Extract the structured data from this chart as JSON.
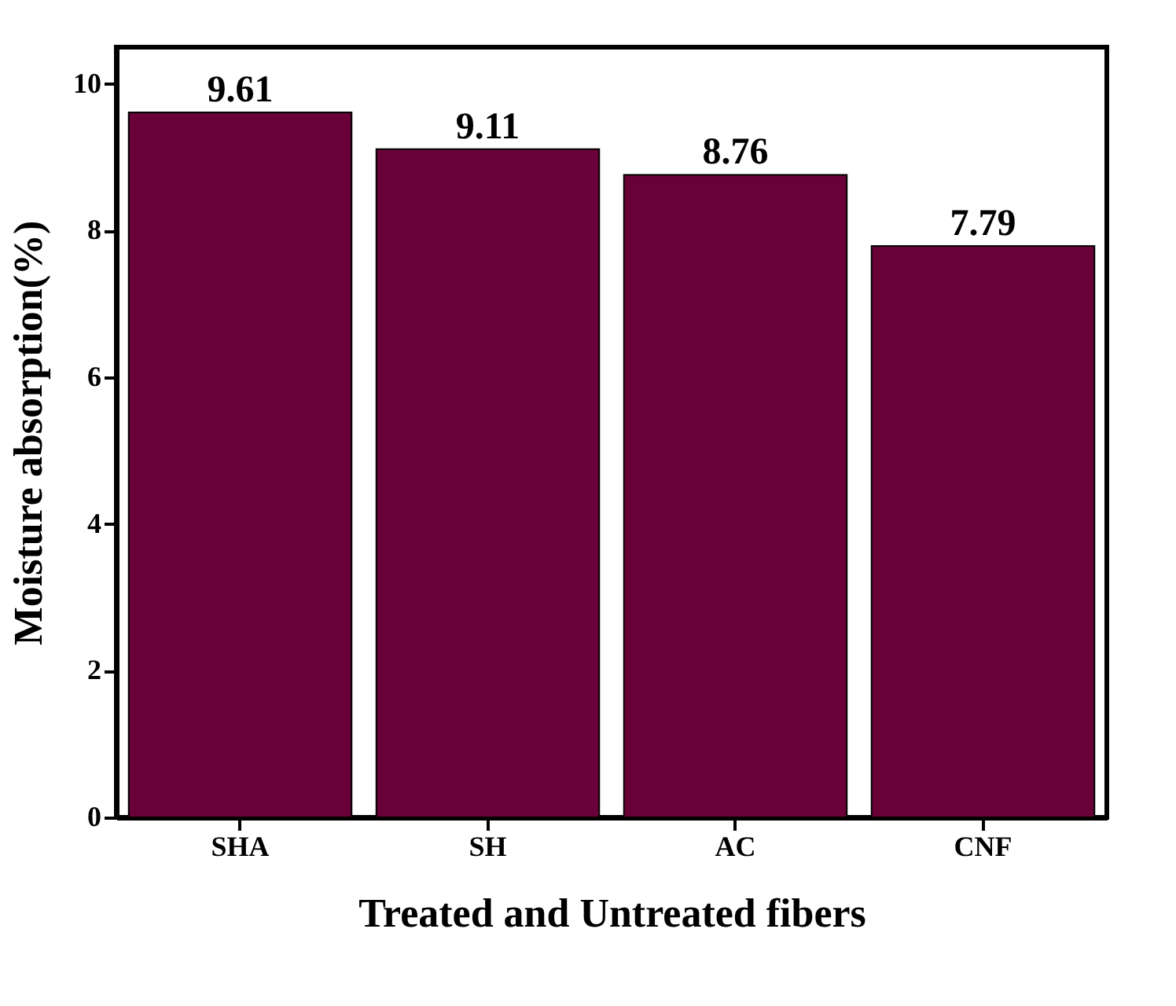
{
  "chart_data": {
    "type": "bar",
    "xlabel": "Treated and Untreated fibers",
    "ylabel": "Moisture absorption(%)",
    "categories": [
      "SHA",
      "SH",
      "AC",
      "CNF"
    ],
    "values": [
      9.61,
      9.11,
      8.76,
      7.79
    ],
    "color": "#6a0038",
    "ylim": [
      0,
      10.5
    ],
    "yticks": [
      0,
      2,
      4,
      6,
      8,
      10
    ],
    "grid": false,
    "data_labels": true
  }
}
